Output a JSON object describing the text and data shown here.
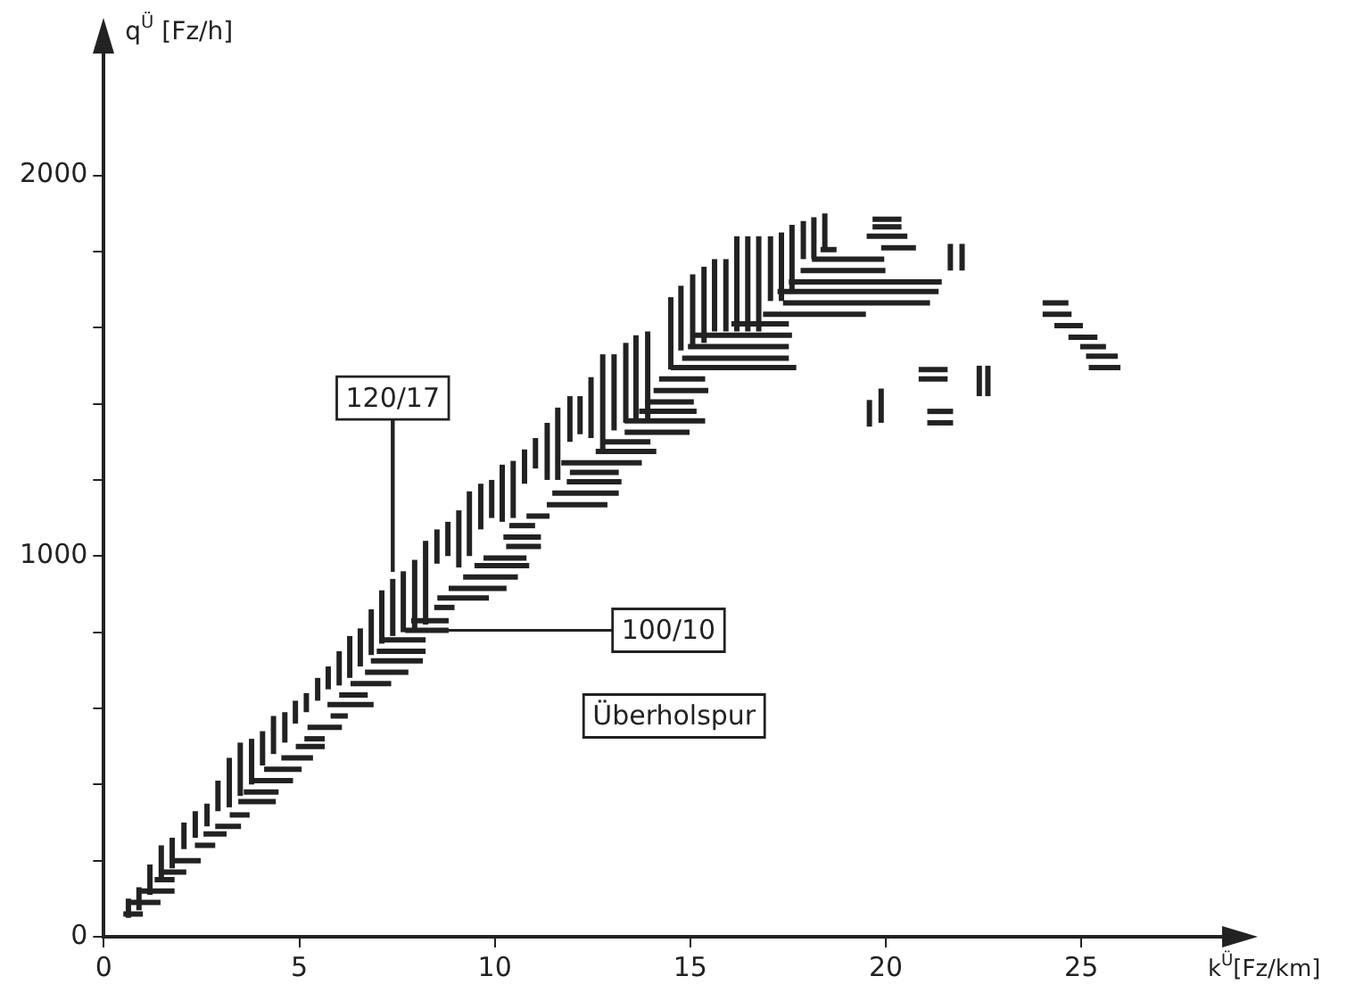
{
  "chart_data": {
    "type": "line",
    "xlabel": "k$^{Ü}$[Fz/km]",
    "ylabel": "q$^{Ü}$ [Fz/h]",
    "xlim": [
      0,
      28.6
    ],
    "ylim": [
      0,
      2320
    ],
    "xticks": [
      0,
      5,
      10,
      15,
      20,
      25
    ],
    "yticks": [
      0,
      {
        "value": 200,
        "label": null
      },
      {
        "value": 400,
        "label": null
      },
      {
        "value": 600,
        "label": null
      },
      {
        "value": 800,
        "label": null
      },
      1000,
      {
        "value": 1200,
        "label": null
      },
      {
        "value": 1400,
        "label": null
      },
      {
        "value": 1600,
        "label": null
      },
      {
        "value": 1800,
        "label": null
      },
      2000
    ],
    "grid": false,
    "legend": false,
    "marker": "none",
    "line_style": "solid",
    "annotations": [
      {
        "text": "120/17",
        "x": 7.39,
        "y": 940
      },
      {
        "text": "100/10",
        "x": 8.82,
        "y": 805
      },
      "Überholspur"
    ],
    "series": [
      {
        "type": "line",
        "color": "#222222",
        "x": [
          0.63,
          0.63
        ],
        "values": [
          50,
          100
        ]
      },
      {
        "type": "line",
        "color": "#222222",
        "x": [
          0.9,
          0.9
        ],
        "values": [
          70,
          130
        ]
      },
      {
        "type": "line",
        "color": "#222222",
        "x": [
          1.18,
          1.18
        ],
        "values": [
          110,
          190
        ]
      },
      {
        "type": "line",
        "color": "#222222",
        "x": [
          1.47,
          1.47
        ],
        "values": [
          150,
          240
        ]
      },
      {
        "type": "line",
        "color": "#222222",
        "x": [
          1.75,
          1.75
        ],
        "values": [
          180,
          260
        ]
      },
      {
        "type": "line",
        "color": "#222222",
        "x": [
          2.05,
          2.05
        ],
        "values": [
          230,
          300
        ]
      },
      {
        "type": "line",
        "color": "#222222",
        "x": [
          2.34,
          2.34
        ],
        "values": [
          260,
          330
        ]
      },
      {
        "type": "line",
        "color": "#222222",
        "x": [
          2.64,
          2.64
        ],
        "values": [
          290,
          350
        ]
      },
      {
        "type": "line",
        "color": "#222222",
        "x": [
          2.92,
          2.92
        ],
        "values": [
          330,
          410
        ]
      },
      {
        "type": "line",
        "color": "#222222",
        "x": [
          3.21,
          3.21
        ],
        "values": [
          340,
          470
        ]
      },
      {
        "type": "line",
        "color": "#222222",
        "x": [
          3.49,
          3.49
        ],
        "values": [
          370,
          510
        ]
      },
      {
        "type": "line",
        "color": "#222222",
        "x": [
          3.78,
          3.78
        ],
        "values": [
          400,
          520
        ]
      },
      {
        "type": "line",
        "color": "#222222",
        "x": [
          4.06,
          4.06
        ],
        "values": [
          450,
          540
        ]
      },
      {
        "type": "line",
        "color": "#222222",
        "x": [
          4.34,
          4.34
        ],
        "values": [
          480,
          580
        ]
      },
      {
        "type": "line",
        "color": "#222222",
        "x": [
          4.63,
          4.63
        ],
        "values": [
          510,
          590
        ]
      },
      {
        "type": "line",
        "color": "#222222",
        "x": [
          4.9,
          4.9
        ],
        "values": [
          560,
          620
        ]
      },
      {
        "type": "line",
        "color": "#222222",
        "x": [
          5.18,
          5.18
        ],
        "values": [
          590,
          640
        ]
      },
      {
        "type": "line",
        "color": "#222222",
        "x": [
          5.47,
          5.47
        ],
        "values": [
          620,
          680
        ]
      },
      {
        "type": "line",
        "color": "#222222",
        "x": [
          5.74,
          5.74
        ],
        "values": [
          650,
          710
        ]
      },
      {
        "type": "line",
        "color": "#222222",
        "x": [
          6.02,
          6.02
        ],
        "values": [
          660,
          750
        ]
      },
      {
        "type": "line",
        "color": "#222222",
        "x": [
          6.29,
          6.29
        ],
        "values": [
          680,
          790
        ]
      },
      {
        "type": "line",
        "color": "#222222",
        "x": [
          6.56,
          6.56
        ],
        "values": [
          710,
          810
        ]
      },
      {
        "type": "line",
        "color": "#222222",
        "x": [
          6.84,
          6.84
        ],
        "values": [
          740,
          860
        ]
      },
      {
        "type": "line",
        "color": "#222222",
        "x": [
          7.11,
          7.11
        ],
        "values": [
          770,
          910
        ]
      },
      {
        "type": "line",
        "color": "#222222",
        "x": [
          7.39,
          7.39
        ],
        "values": [
          790,
          940
        ]
      },
      {
        "type": "line",
        "color": "#222222",
        "x": [
          7.66,
          7.66
        ],
        "values": [
          800,
          960
        ]
      },
      {
        "type": "line",
        "color": "#222222",
        "x": [
          7.95,
          7.95
        ],
        "values": [
          810,
          990
        ]
      },
      {
        "type": "line",
        "color": "#222222",
        "x": [
          8.23,
          8.23
        ],
        "values": [
          820,
          1040
        ]
      },
      {
        "type": "line",
        "color": "#222222",
        "x": [
          8.52,
          8.52
        ],
        "values": [
          980,
          1070
        ]
      },
      {
        "type": "line",
        "color": "#222222",
        "x": [
          8.8,
          8.8
        ],
        "values": [
          1000,
          1090
        ]
      },
      {
        "type": "line",
        "color": "#222222",
        "x": [
          9.08,
          9.08
        ],
        "values": [
          970,
          1120
        ]
      },
      {
        "type": "line",
        "color": "#222222",
        "x": [
          9.35,
          9.35
        ],
        "values": [
          1000,
          1170
        ]
      },
      {
        "type": "line",
        "color": "#222222",
        "x": [
          9.64,
          9.64
        ],
        "values": [
          1070,
          1190
        ]
      },
      {
        "type": "line",
        "color": "#222222",
        "x": [
          9.92,
          9.92
        ],
        "values": [
          1100,
          1200
        ]
      },
      {
        "type": "line",
        "color": "#222222",
        "x": [
          10.19,
          10.19
        ],
        "values": [
          1090,
          1240
        ]
      },
      {
        "type": "line",
        "color": "#222222",
        "x": [
          10.47,
          10.47
        ],
        "values": [
          1100,
          1250
        ]
      },
      {
        "type": "line",
        "color": "#222222",
        "x": [
          10.76,
          10.76
        ],
        "values": [
          1190,
          1280
        ]
      },
      {
        "type": "line",
        "color": "#222222",
        "x": [
          11.04,
          11.04
        ],
        "values": [
          1230,
          1310
        ]
      },
      {
        "type": "line",
        "color": "#222222",
        "x": [
          11.34,
          11.34
        ],
        "values": [
          1200,
          1350
        ]
      },
      {
        "type": "line",
        "color": "#222222",
        "x": [
          11.61,
          11.61
        ],
        "values": [
          1200,
          1390
        ]
      },
      {
        "type": "line",
        "color": "#222222",
        "x": [
          11.92,
          11.92
        ],
        "values": [
          1300,
          1420
        ]
      },
      {
        "type": "line",
        "color": "#222222",
        "x": [
          12.18,
          12.18
        ],
        "values": [
          1320,
          1420
        ]
      },
      {
        "type": "line",
        "color": "#222222",
        "x": [
          12.46,
          12.46
        ],
        "values": [
          1310,
          1470
        ]
      },
      {
        "type": "line",
        "color": "#222222",
        "x": [
          12.76,
          12.76
        ],
        "values": [
          1280,
          1530
        ]
      },
      {
        "type": "line",
        "color": "#222222",
        "x": [
          13.05,
          13.05
        ],
        "values": [
          1330,
          1530
        ]
      },
      {
        "type": "line",
        "color": "#222222",
        "x": [
          13.35,
          13.35
        ],
        "values": [
          1350,
          1560
        ]
      },
      {
        "type": "line",
        "color": "#222222",
        "x": [
          13.61,
          13.61
        ],
        "values": [
          1360,
          1580
        ]
      },
      {
        "type": "line",
        "color": "#222222",
        "x": [
          13.91,
          13.91
        ],
        "values": [
          1360,
          1590
        ]
      },
      {
        "type": "line",
        "color": "#222222",
        "x": [
          14.5,
          14.5
        ],
        "values": [
          1490,
          1680
        ]
      },
      {
        "type": "line",
        "color": "#222222",
        "x": [
          14.76,
          14.76
        ],
        "values": [
          1540,
          1710
        ]
      },
      {
        "type": "line",
        "color": "#222222",
        "x": [
          15.06,
          15.06
        ],
        "values": [
          1550,
          1740
        ]
      },
      {
        "type": "line",
        "color": "#222222",
        "x": [
          15.35,
          15.35
        ],
        "values": [
          1560,
          1760
        ]
      },
      {
        "type": "line",
        "color": "#222222",
        "x": [
          15.62,
          15.62
        ],
        "values": [
          1590,
          1780
        ]
      },
      {
        "type": "line",
        "color": "#222222",
        "x": [
          15.91,
          15.91
        ],
        "values": [
          1590,
          1780
        ]
      },
      {
        "type": "line",
        "color": "#222222",
        "x": [
          16.19,
          16.19
        ],
        "values": [
          1590,
          1840
        ]
      },
      {
        "type": "line",
        "color": "#222222",
        "x": [
          16.47,
          16.47
        ],
        "values": [
          1590,
          1840
        ]
      },
      {
        "type": "line",
        "color": "#222222",
        "x": [
          16.75,
          16.75
        ],
        "values": [
          1590,
          1840
        ]
      },
      {
        "type": "line",
        "color": "#222222",
        "x": [
          17.05,
          17.05
        ],
        "values": [
          1670,
          1840
        ]
      },
      {
        "type": "line",
        "color": "#222222",
        "x": [
          17.33,
          17.33
        ],
        "values": [
          1670,
          1850
        ]
      },
      {
        "type": "line",
        "color": "#222222",
        "x": [
          17.6,
          17.6
        ],
        "values": [
          1690,
          1870
        ]
      },
      {
        "type": "line",
        "color": "#222222",
        "x": [
          17.89,
          17.89
        ],
        "values": [
          1780,
          1880
        ]
      },
      {
        "type": "line",
        "color": "#222222",
        "x": [
          18.16,
          18.16
        ],
        "values": [
          1780,
          1890
        ]
      },
      {
        "type": "line",
        "color": "#222222",
        "x": [
          18.44,
          18.44
        ],
        "values": [
          1810,
          1900
        ]
      },
      {
        "type": "line",
        "color": "#222222",
        "x": [
          19.58,
          19.58
        ],
        "values": [
          1340,
          1410
        ]
      },
      {
        "type": "line",
        "color": "#222222",
        "x": [
          19.88,
          19.88
        ],
        "values": [
          1350,
          1440
        ]
      },
      {
        "type": "line",
        "color": "#222222",
        "x": [
          21.65,
          21.65
        ],
        "values": [
          1750,
          1820
        ]
      },
      {
        "type": "line",
        "color": "#222222",
        "x": [
          21.95,
          21.95
        ],
        "values": [
          1750,
          1820
        ]
      },
      {
        "type": "line",
        "color": "#222222",
        "x": [
          22.39,
          22.39
        ],
        "values": [
          1420,
          1500
        ]
      },
      {
        "type": "line",
        "color": "#222222",
        "x": [
          22.61,
          22.61
        ],
        "values": [
          1420,
          1500
        ]
      },
      {
        "type": "line",
        "color": "#222222",
        "x": [
          0.5,
          1.0
        ],
        "values": [
          60,
          60
        ]
      },
      {
        "type": "line",
        "color": "#222222",
        "x": [
          0.7,
          1.45
        ],
        "values": [
          90,
          90
        ]
      },
      {
        "type": "line",
        "color": "#222222",
        "x": [
          0.93,
          1.81
        ],
        "values": [
          120,
          120
        ]
      },
      {
        "type": "line",
        "color": "#222222",
        "x": [
          1.3,
          1.81
        ],
        "values": [
          150,
          150
        ]
      },
      {
        "type": "line",
        "color": "#222222",
        "x": [
          1.52,
          2.11
        ],
        "values": [
          170,
          170
        ]
      },
      {
        "type": "line",
        "color": "#222222",
        "x": [
          1.81,
          2.48
        ],
        "values": [
          200,
          200
        ]
      },
      {
        "type": "line",
        "color": "#222222",
        "x": [
          2.33,
          2.85
        ],
        "values": [
          240,
          240
        ]
      },
      {
        "type": "line",
        "color": "#222222",
        "x": [
          2.55,
          3.14
        ],
        "values": [
          270,
          270
        ]
      },
      {
        "type": "line",
        "color": "#222222",
        "x": [
          2.85,
          3.51
        ],
        "values": [
          290,
          290
        ]
      },
      {
        "type": "line",
        "color": "#222222",
        "x": [
          3.22,
          3.73
        ],
        "values": [
          320,
          320
        ]
      },
      {
        "type": "line",
        "color": "#222222",
        "x": [
          3.44,
          4.4
        ],
        "values": [
          355,
          355
        ]
      },
      {
        "type": "line",
        "color": "#222222",
        "x": [
          3.58,
          4.47
        ],
        "values": [
          380,
          380
        ]
      },
      {
        "type": "line",
        "color": "#222222",
        "x": [
          3.73,
          4.84
        ],
        "values": [
          410,
          410
        ]
      },
      {
        "type": "line",
        "color": "#222222",
        "x": [
          4.1,
          5.06
        ],
        "values": [
          440,
          440
        ]
      },
      {
        "type": "line",
        "color": "#222222",
        "x": [
          4.54,
          5.35
        ],
        "values": [
          470,
          470
        ]
      },
      {
        "type": "line",
        "color": "#222222",
        "x": [
          4.91,
          5.65
        ],
        "values": [
          500,
          500
        ]
      },
      {
        "type": "line",
        "color": "#222222",
        "x": [
          5.13,
          5.65
        ],
        "values": [
          520,
          520
        ]
      },
      {
        "type": "line",
        "color": "#222222",
        "x": [
          5.21,
          6.09
        ],
        "values": [
          550,
          550
        ]
      },
      {
        "type": "line",
        "color": "#222222",
        "x": [
          5.8,
          6.24
        ],
        "values": [
          580,
          580
        ]
      },
      {
        "type": "line",
        "color": "#222222",
        "x": [
          5.72,
          6.9
        ],
        "values": [
          610,
          610
        ]
      },
      {
        "type": "line",
        "color": "#222222",
        "x": [
          6.02,
          6.75
        ],
        "values": [
          635,
          635
        ]
      },
      {
        "type": "line",
        "color": "#222222",
        "x": [
          6.31,
          7.35
        ],
        "values": [
          665,
          665
        ]
      },
      {
        "type": "line",
        "color": "#222222",
        "x": [
          6.68,
          7.79
        ],
        "values": [
          695,
          695
        ]
      },
      {
        "type": "line",
        "color": "#222222",
        "x": [
          6.83,
          8.16
        ],
        "values": [
          725,
          725
        ]
      },
      {
        "type": "line",
        "color": "#222222",
        "x": [
          6.98,
          8.23
        ],
        "values": [
          750,
          750
        ]
      },
      {
        "type": "line",
        "color": "#222222",
        "x": [
          7.06,
          8.23
        ],
        "values": [
          780,
          780
        ]
      },
      {
        "type": "line",
        "color": "#222222",
        "x": [
          7.71,
          8.82
        ],
        "values": [
          805,
          805
        ]
      },
      {
        "type": "line",
        "color": "#222222",
        "x": [
          7.86,
          8.82
        ],
        "values": [
          830,
          830
        ]
      },
      {
        "type": "line",
        "color": "#222222",
        "x": [
          8.45,
          8.97
        ],
        "values": [
          865,
          865
        ]
      },
      {
        "type": "line",
        "color": "#222222",
        "x": [
          8.53,
          9.85
        ],
        "values": [
          890,
          890
        ]
      },
      {
        "type": "line",
        "color": "#222222",
        "x": [
          8.82,
          10.3
        ],
        "values": [
          915,
          915
        ]
      },
      {
        "type": "line",
        "color": "#222222",
        "x": [
          9.19,
          10.59
        ],
        "values": [
          945,
          945
        ]
      },
      {
        "type": "line",
        "color": "#222222",
        "x": [
          9.48,
          10.88
        ],
        "values": [
          975,
          975
        ]
      },
      {
        "type": "line",
        "color": "#222222",
        "x": [
          9.71,
          10.81
        ],
        "values": [
          995,
          995
        ]
      },
      {
        "type": "line",
        "color": "#222222",
        "x": [
          10.29,
          11.18
        ],
        "values": [
          1025,
          1025
        ]
      },
      {
        "type": "line",
        "color": "#222222",
        "x": [
          10.22,
          11.18
        ],
        "values": [
          1050,
          1050
        ]
      },
      {
        "type": "line",
        "color": "#222222",
        "x": [
          10.37,
          11.03
        ],
        "values": [
          1080,
          1080
        ]
      },
      {
        "type": "line",
        "color": "#222222",
        "x": [
          10.81,
          11.4
        ],
        "values": [
          1105,
          1105
        ]
      },
      {
        "type": "line",
        "color": "#222222",
        "x": [
          11.33,
          12.88
        ],
        "values": [
          1135,
          1135
        ]
      },
      {
        "type": "line",
        "color": "#222222",
        "x": [
          11.47,
          13.17
        ],
        "values": [
          1165,
          1165
        ]
      },
      {
        "type": "line",
        "color": "#222222",
        "x": [
          11.84,
          13.24
        ],
        "values": [
          1195,
          1195
        ]
      },
      {
        "type": "line",
        "color": "#222222",
        "x": [
          11.92,
          13.17
        ],
        "values": [
          1220,
          1220
        ]
      },
      {
        "type": "line",
        "color": "#222222",
        "x": [
          11.7,
          13.76
        ],
        "values": [
          1245,
          1245
        ]
      },
      {
        "type": "line",
        "color": "#222222",
        "x": [
          12.58,
          14.13
        ],
        "values": [
          1275,
          1275
        ]
      },
      {
        "type": "line",
        "color": "#222222",
        "x": [
          12.73,
          13.98
        ],
        "values": [
          1300,
          1300
        ]
      },
      {
        "type": "line",
        "color": "#222222",
        "x": [
          13.32,
          14.98
        ],
        "values": [
          1325,
          1325
        ]
      },
      {
        "type": "line",
        "color": "#222222",
        "x": [
          13.32,
          15.38
        ],
        "values": [
          1355,
          1355
        ]
      },
      {
        "type": "line",
        "color": "#222222",
        "x": [
          13.69,
          15.16
        ],
        "values": [
          1380,
          1380
        ]
      },
      {
        "type": "line",
        "color": "#222222",
        "x": [
          13.84,
          15.09
        ],
        "values": [
          1405,
          1405
        ]
      },
      {
        "type": "line",
        "color": "#222222",
        "x": [
          14.06,
          15.46
        ],
        "values": [
          1435,
          1435
        ]
      },
      {
        "type": "line",
        "color": "#222222",
        "x": [
          14.2,
          15.38
        ],
        "values": [
          1465,
          1465
        ]
      },
      {
        "type": "line",
        "color": "#222222",
        "x": [
          14.5,
          17.71
        ],
        "values": [
          1495,
          1495
        ]
      },
      {
        "type": "line",
        "color": "#222222",
        "x": [
          14.79,
          17.52
        ],
        "values": [
          1520,
          1520
        ]
      },
      {
        "type": "line",
        "color": "#222222",
        "x": [
          14.94,
          17.52
        ],
        "values": [
          1550,
          1550
        ]
      },
      {
        "type": "line",
        "color": "#222222",
        "x": [
          15.09,
          17.6
        ],
        "values": [
          1580,
          1580
        ]
      },
      {
        "type": "line",
        "color": "#222222",
        "x": [
          16.05,
          17.52
        ],
        "values": [
          1610,
          1610
        ]
      },
      {
        "type": "line",
        "color": "#222222",
        "x": [
          16.86,
          19.49
        ],
        "values": [
          1635,
          1635
        ]
      },
      {
        "type": "line",
        "color": "#222222",
        "x": [
          17.37,
          21.13
        ],
        "values": [
          1665,
          1665
        ]
      },
      {
        "type": "line",
        "color": "#222222",
        "x": [
          17.23,
          21.35
        ],
        "values": [
          1695,
          1695
        ]
      },
      {
        "type": "line",
        "color": "#222222",
        "x": [
          17.52,
          21.43
        ],
        "values": [
          1720,
          1720
        ]
      },
      {
        "type": "line",
        "color": "#222222",
        "x": [
          17.82,
          19.99
        ],
        "values": [
          1750,
          1750
        ]
      },
      {
        "type": "line",
        "color": "#222222",
        "x": [
          18.11,
          19.96
        ],
        "values": [
          1780,
          1780
        ]
      },
      {
        "type": "line",
        "color": "#222222",
        "x": [
          18.33,
          18.74
        ],
        "values": [
          1805,
          1805
        ]
      },
      {
        "type": "line",
        "color": "#222222",
        "x": [
          19.66,
          20.4
        ],
        "values": [
          1885,
          1885
        ]
      },
      {
        "type": "line",
        "color": "#222222",
        "x": [
          19.66,
          20.4
        ],
        "values": [
          1865,
          1865
        ]
      },
      {
        "type": "line",
        "color": "#222222",
        "x": [
          19.51,
          20.55
        ],
        "values": [
          1840,
          1840
        ]
      },
      {
        "type": "line",
        "color": "#222222",
        "x": [
          19.88,
          20.77
        ],
        "values": [
          1810,
          1810
        ]
      },
      {
        "type": "line",
        "color": "#222222",
        "x": [
          20.84,
          21.58
        ],
        "values": [
          1490,
          1490
        ]
      },
      {
        "type": "line",
        "color": "#222222",
        "x": [
          20.84,
          21.58
        ],
        "values": [
          1465,
          1465
        ]
      },
      {
        "type": "line",
        "color": "#222222",
        "x": [
          21.06,
          21.72
        ],
        "values": [
          1380,
          1380
        ]
      },
      {
        "type": "line",
        "color": "#222222",
        "x": [
          21.06,
          21.72
        ],
        "values": [
          1350,
          1350
        ]
      },
      {
        "type": "line",
        "color": "#222222",
        "x": [
          24.01,
          24.67
        ],
        "values": [
          1665,
          1665
        ]
      },
      {
        "type": "line",
        "color": "#222222",
        "x": [
          24.01,
          24.75
        ],
        "values": [
          1635,
          1635
        ]
      },
      {
        "type": "line",
        "color": "#222222",
        "x": [
          24.31,
          25.04
        ],
        "values": [
          1605,
          1605
        ]
      },
      {
        "type": "line",
        "color": "#222222",
        "x": [
          24.67,
          25.41
        ],
        "values": [
          1575,
          1575
        ]
      },
      {
        "type": "line",
        "color": "#222222",
        "x": [
          24.97,
          25.63
        ],
        "values": [
          1550,
          1550
        ]
      },
      {
        "type": "line",
        "color": "#222222",
        "x": [
          25.12,
          25.93
        ],
        "values": [
          1525,
          1525
        ]
      },
      {
        "type": "line",
        "color": "#222222",
        "x": [
          25.19,
          26.0
        ],
        "values": [
          1495,
          1495
        ]
      }
    ]
  }
}
